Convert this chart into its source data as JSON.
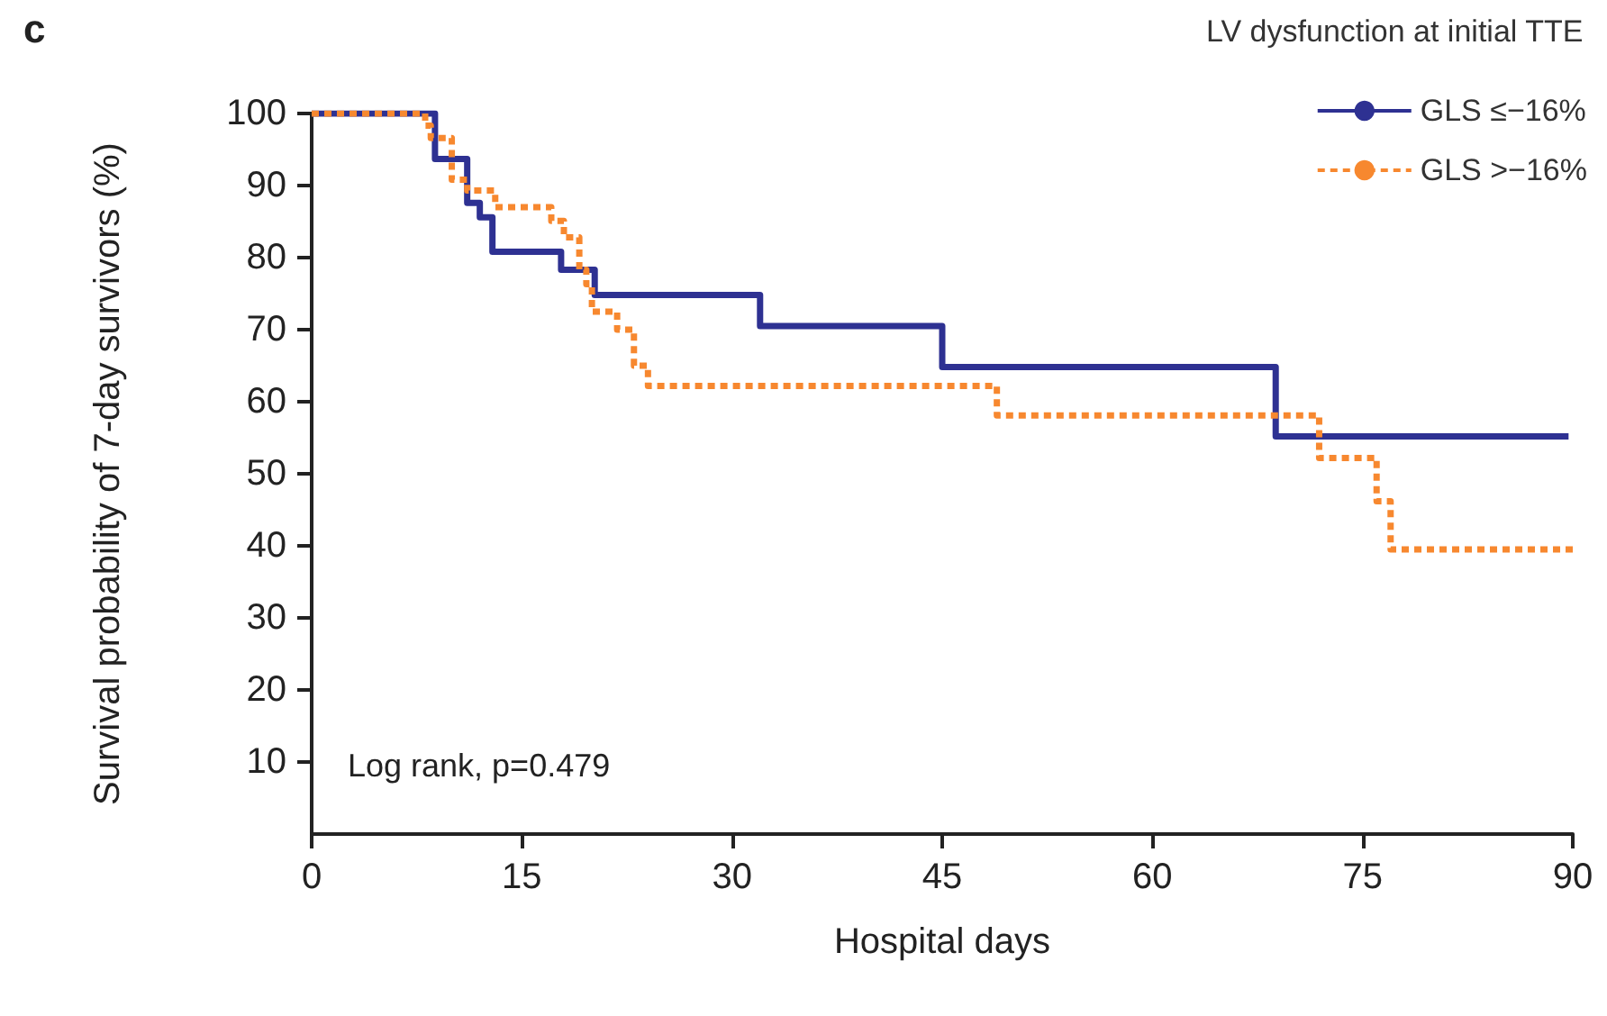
{
  "chart_data": {
    "type": "step",
    "title": "c",
    "legend_title": "LV dysfunction at initial TTE",
    "xlabel": "Hospital days",
    "ylabel": "Survival probability of 7-day survivors (%)",
    "xlim": [
      0,
      90
    ],
    "xticks": [
      0,
      15,
      30,
      45,
      60,
      75,
      90
    ],
    "ylim": [
      0,
      100
    ],
    "yticks": [
      10,
      20,
      30,
      40,
      50,
      60,
      70,
      80,
      90,
      100
    ],
    "series": [
      {
        "name": "GLS ≤−16%",
        "color": "#2e3192",
        "line_style": "solid",
        "x": [
          0,
          8.8,
          11.1,
          12,
          12.9,
          17.8,
          20.2,
          32,
          45,
          68.8,
          89.7
        ],
        "values": [
          100,
          93.7,
          87.6,
          85.6,
          80.8,
          78.3,
          74.8,
          70.5,
          64.8,
          55.2,
          55.2
        ]
      },
      {
        "name": "GLS >−16%",
        "color": "#f7882f",
        "line_style": "dashed",
        "x": [
          0,
          8.1,
          8.5,
          10,
          11.1,
          13.1,
          17.1,
          18,
          19.1,
          19.6,
          20,
          21.8,
          23,
          24,
          48.9,
          71.9,
          76,
          77,
          90
        ],
        "values": [
          100,
          98.3,
          96.6,
          90.8,
          89.3,
          87,
          85.1,
          82.8,
          78.3,
          76.3,
          72.5,
          70,
          65,
          62.2,
          58.1,
          52.2,
          46.2,
          39.5,
          39.5
        ]
      }
    ],
    "legend": "top right",
    "grid": false,
    "marker": "none",
    "annotations": [
      "Log rank, p=0.479"
    ]
  }
}
